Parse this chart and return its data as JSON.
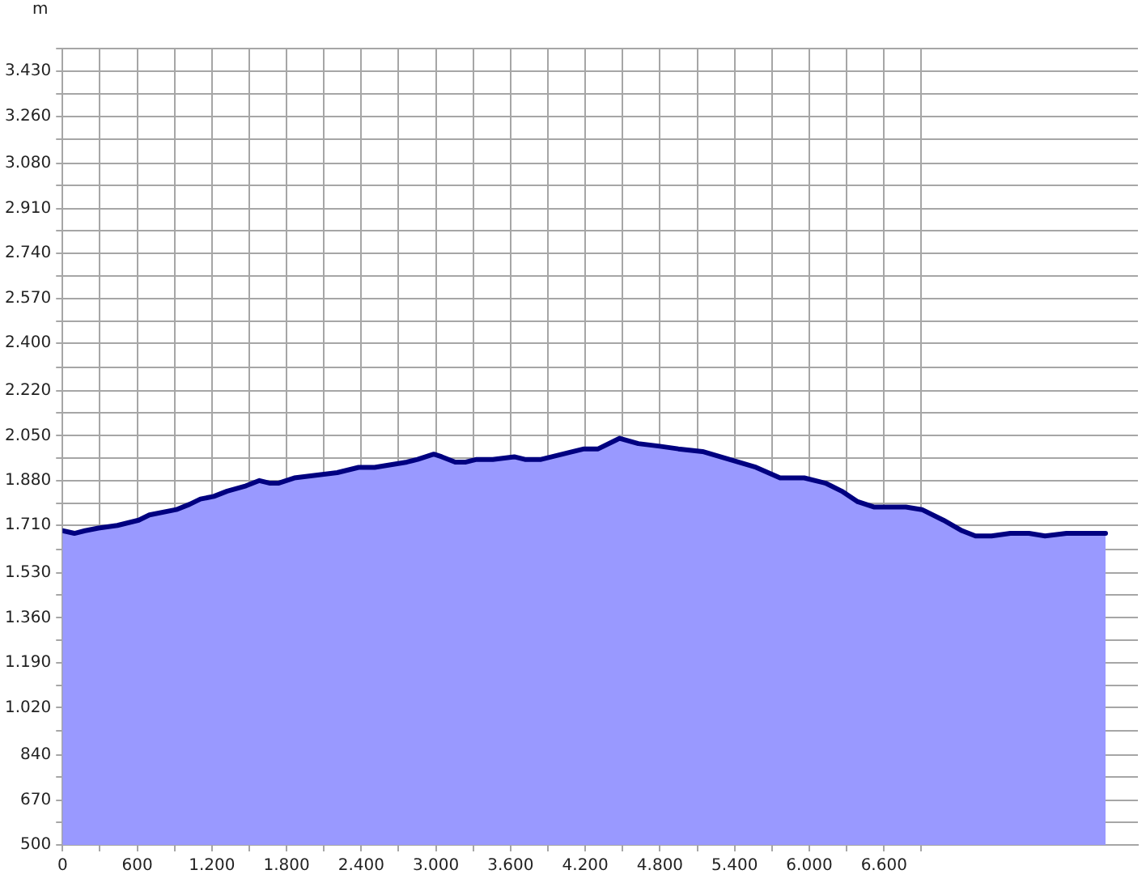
{
  "chart_data": {
    "type": "area",
    "ylabel": "m",
    "x": [
      0,
      95,
      181,
      289,
      440,
      612,
      698,
      914,
      1021,
      1108,
      1215,
      1323,
      1474,
      1582,
      1668,
      1733,
      1862,
      2034,
      2207,
      2379,
      2508,
      2638,
      2767,
      2853,
      2983,
      3047,
      3155,
      3241,
      3327,
      3457,
      3629,
      3715,
      3845,
      3931,
      4017,
      4103,
      4190,
      4303,
      4475,
      4626,
      4798,
      4948,
      5142,
      5357,
      5572,
      5765,
      5959,
      6131,
      6260,
      6389,
      6518,
      6776,
      6905,
      7077,
      7227,
      7335,
      7464,
      7615,
      7765,
      7894,
      8066,
      8195,
      8380
    ],
    "series": [
      {
        "color": "#000080",
        "values": [
          1690,
          1680,
          1690,
          1700,
          1710,
          1730,
          1750,
          1770,
          1790,
          1810,
          1820,
          1840,
          1860,
          1880,
          1870,
          1870,
          1890,
          1900,
          1910,
          1930,
          1930,
          1940,
          1950,
          1960,
          1980,
          1970,
          1950,
          1950,
          1960,
          1960,
          1970,
          1960,
          1960,
          1970,
          1980,
          1990,
          2000,
          2000,
          2040,
          2020,
          2010,
          2000,
          1990,
          1960,
          1930,
          1890,
          1890,
          1870,
          1840,
          1800,
          1780,
          1780,
          1770,
          1730,
          1690,
          1670,
          1670,
          1680,
          1680,
          1670,
          1680,
          1680,
          1680
        ]
      }
    ],
    "xlim": [
      0,
      8640
    ],
    "xticks": [
      0,
      {
        "value": 300,
        "label": null
      },
      600,
      {
        "value": 900,
        "label": null
      },
      {
        "value": 1200,
        "label": "1.200"
      },
      {
        "value": 1500,
        "label": null
      },
      {
        "value": 1800,
        "label": "1.800"
      },
      {
        "value": 2100,
        "label": null
      },
      {
        "value": 2400,
        "label": "2.400"
      },
      {
        "value": 2700,
        "label": null
      },
      {
        "value": 3000,
        "label": "3.000"
      },
      {
        "value": 3300,
        "label": null
      },
      {
        "value": 3600,
        "label": "3.600"
      },
      {
        "value": 3900,
        "label": null
      },
      {
        "value": 4200,
        "label": "4.200"
      },
      {
        "value": 4500,
        "label": null
      },
      {
        "value": 4800,
        "label": "4.800"
      },
      {
        "value": 5100,
        "label": null
      },
      {
        "value": 5400,
        "label": "5.400"
      },
      {
        "value": 5700,
        "label": null
      },
      {
        "value": 6000,
        "label": "6.000"
      },
      {
        "value": 6300,
        "label": null
      },
      {
        "value": 6600,
        "label": "6.600"
      },
      {
        "value": 6900,
        "label": null
      }
    ],
    "ylim": [
      500,
      3516.2
    ],
    "yticks": [
      500,
      {
        "value": 586.2,
        "label": null
      },
      670,
      {
        "value": 758.5,
        "label": null
      },
      840,
      {
        "value": 930.9,
        "label": null
      },
      {
        "value": 1020,
        "label": "1.020"
      },
      {
        "value": 1103.2,
        "label": null
      },
      {
        "value": 1190,
        "label": "1.190"
      },
      {
        "value": 1275.6,
        "label": null
      },
      {
        "value": 1360,
        "label": "1.360"
      },
      {
        "value": 1447.9,
        "label": null
      },
      {
        "value": 1530,
        "label": "1.530"
      },
      {
        "value": 1620.3,
        "label": null
      },
      {
        "value": 1710,
        "label": "1.710"
      },
      {
        "value": 1792.6,
        "label": null
      },
      {
        "value": 1880,
        "label": "1.880"
      },
      {
        "value": 1965.0,
        "label": null
      },
      {
        "value": 2050,
        "label": "2.050"
      },
      {
        "value": 2137.4,
        "label": null
      },
      {
        "value": 2220,
        "label": "2.220"
      },
      {
        "value": 2309.7,
        "label": null
      },
      {
        "value": 2400,
        "label": "2.400"
      },
      {
        "value": 2482.1,
        "label": null
      },
      {
        "value": 2570,
        "label": "2.570"
      },
      {
        "value": 2654.4,
        "label": null
      },
      {
        "value": 2740,
        "label": "2.740"
      },
      {
        "value": 2826.8,
        "label": null
      },
      {
        "value": 2910,
        "label": "2.910"
      },
      {
        "value": 2999.1,
        "label": null
      },
      {
        "value": 3080,
        "label": "3.080"
      },
      {
        "value": 3171.5,
        "label": null
      },
      {
        "value": 3260,
        "label": "3.260"
      },
      {
        "value": 3343.8,
        "label": null
      },
      {
        "value": 3430,
        "label": "3.430"
      },
      {
        "value": 3516.2,
        "label": null
      }
    ],
    "grid": true,
    "legend": false,
    "marker": "none",
    "line_style": "solid"
  }
}
